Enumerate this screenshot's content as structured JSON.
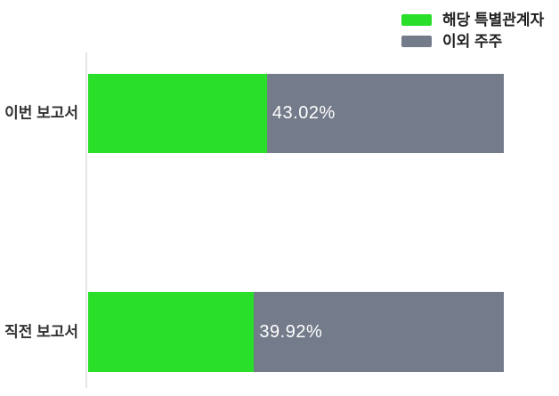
{
  "chart_data": {
    "type": "bar",
    "orientation": "horizontal",
    "stacked": true,
    "unit": "%",
    "title": "",
    "categories": [
      "이번 보고서",
      "직전 보고서"
    ],
    "series": [
      {
        "name": "해당 특별관계자",
        "color": "#2ADF2A",
        "values": [
          43.02,
          39.92
        ]
      },
      {
        "name": "이외 주주",
        "color": "#747B8A",
        "values": [
          56.98,
          60.08
        ]
      }
    ],
    "value_labels": [
      "43.02%",
      "39.92%"
    ],
    "xlim": [
      0,
      100
    ],
    "grid": false,
    "legend_position": "top-right",
    "axis_line_color": "#E4E4E4",
    "category_label_color": "#333333",
    "value_label_color": "#FFFFFF",
    "background_color": "#FFFFFF"
  }
}
